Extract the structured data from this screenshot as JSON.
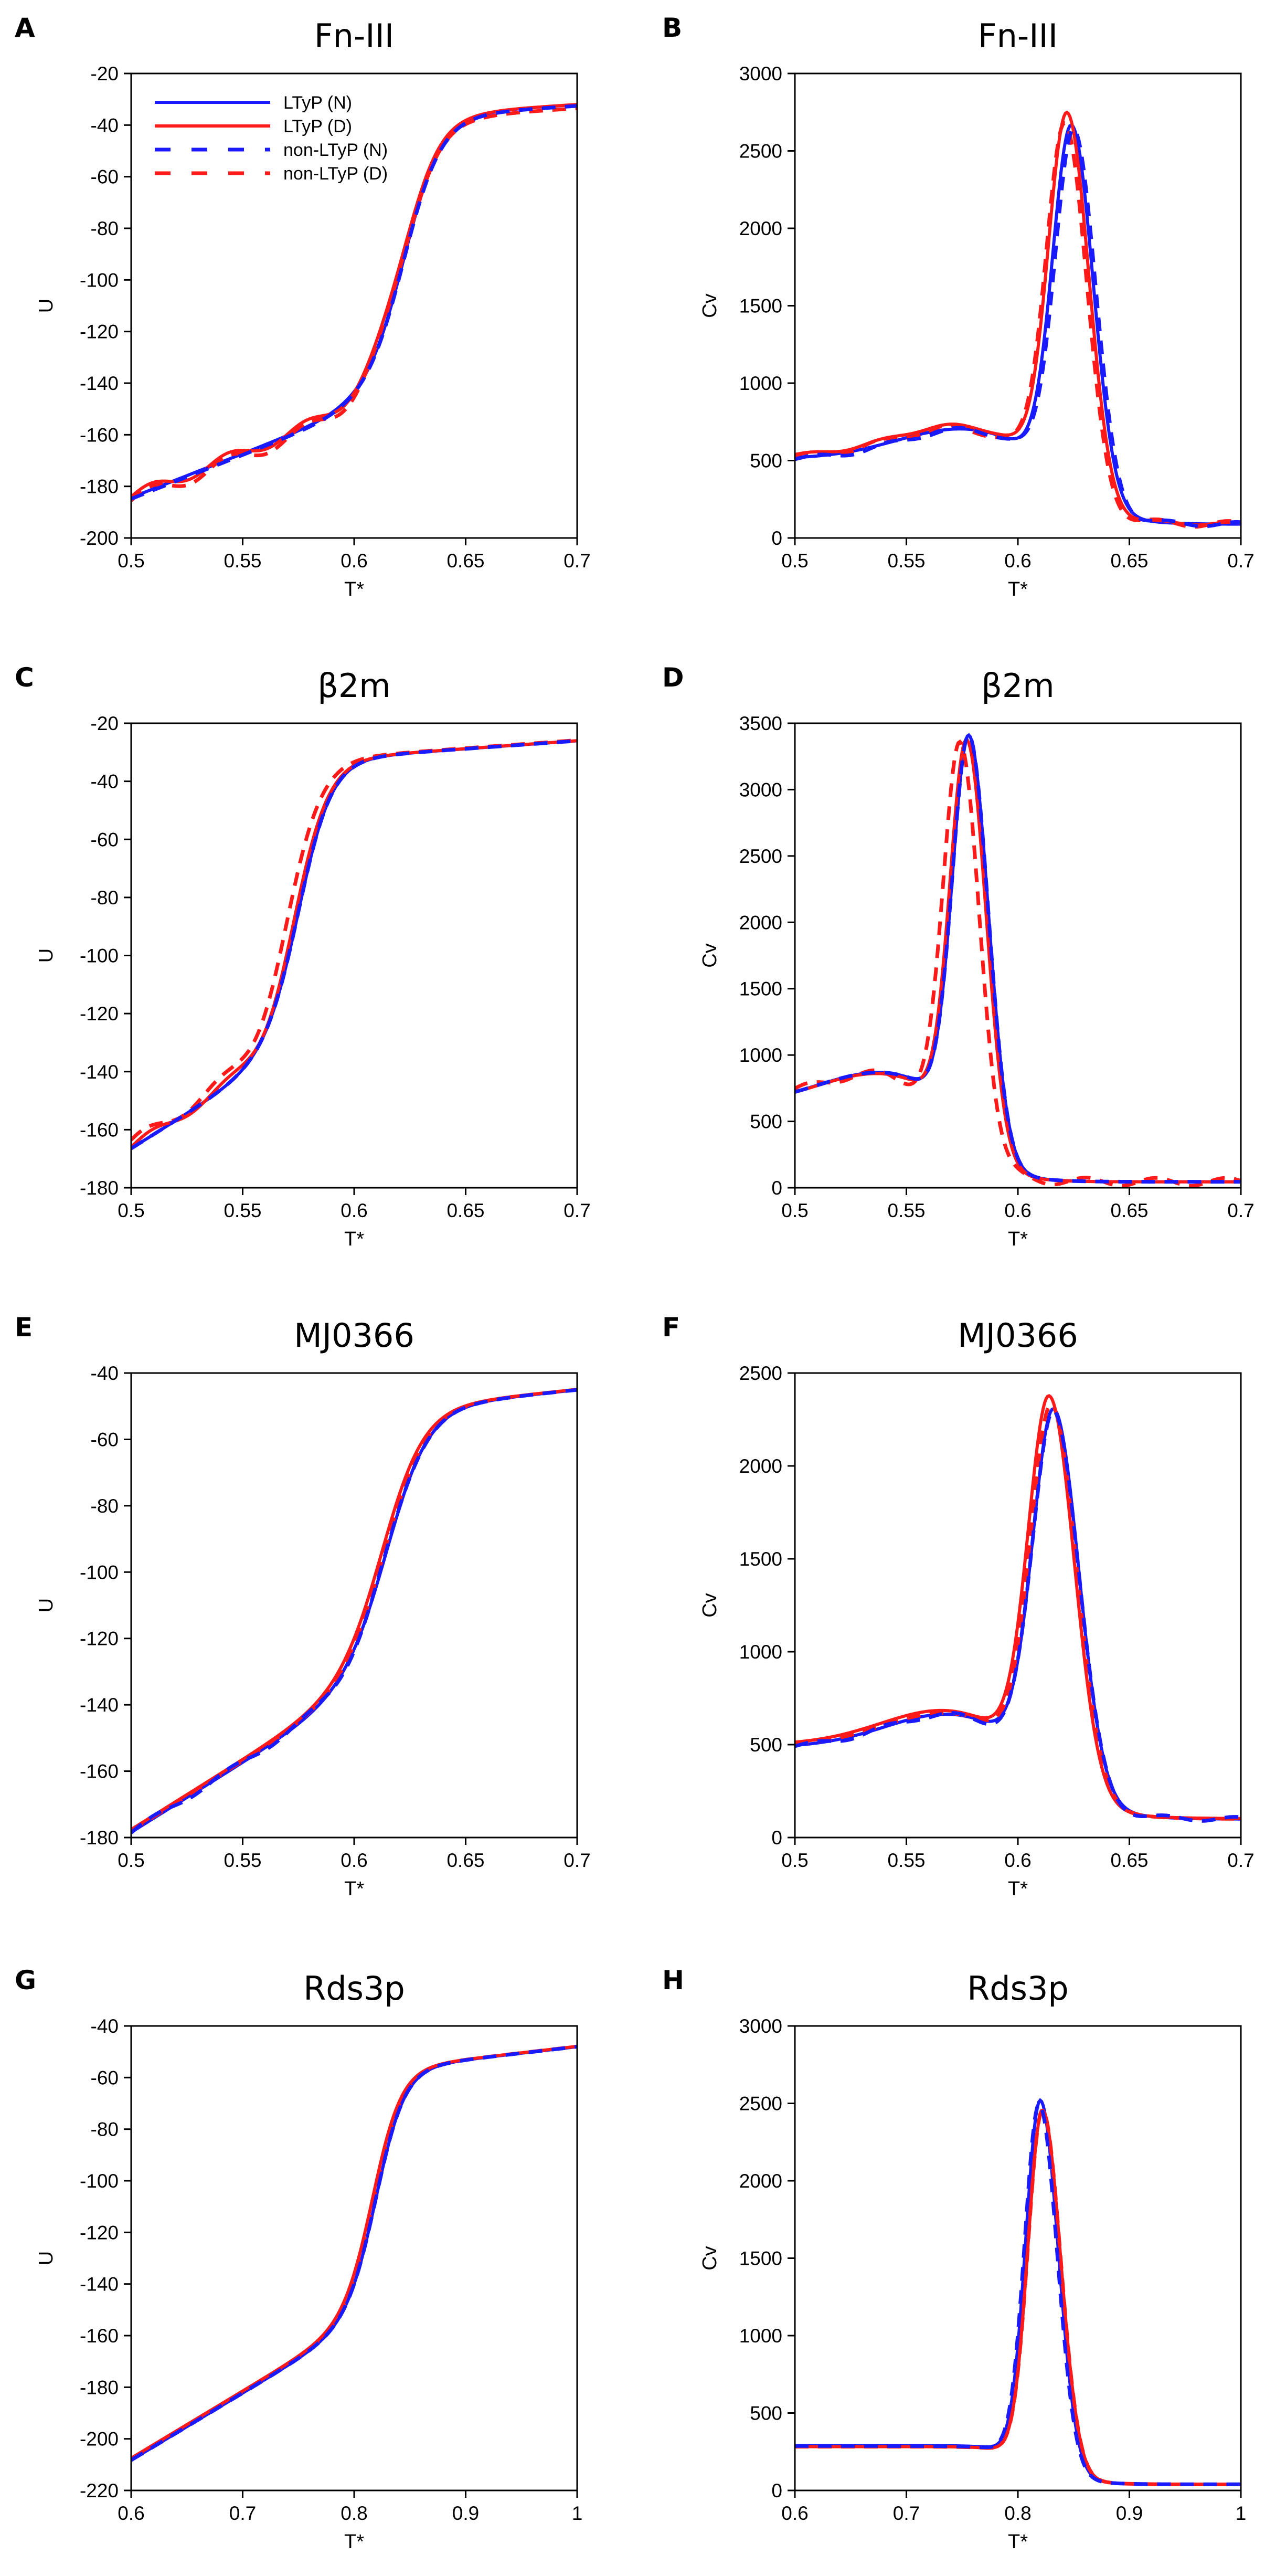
{
  "figure": {
    "colors": {
      "ltyp_n": "#1a1aff",
      "ltyp_d": "#ff1a1a",
      "nonltyp_n": "#1a1aff",
      "nonltyp_d": "#ff1a1a",
      "axis": "#000000"
    },
    "legend": [
      {
        "key": "ltyp_n",
        "label": "LTyP (N)",
        "style": "solid"
      },
      {
        "key": "ltyp_d",
        "label": "LTyP (D)",
        "style": "solid"
      },
      {
        "key": "nonltyp_n",
        "label": "non-LTyP (N)",
        "style": "dashed"
      },
      {
        "key": "nonltyp_d",
        "label": "non-LTyP (D)",
        "style": "dashed"
      }
    ]
  },
  "chart_data": [
    {
      "panel": "A",
      "title": "Fn-III",
      "type": "line",
      "xlabel": "T*",
      "ylabel": "U",
      "xlim": [
        0.5,
        0.7
      ],
      "ylim": [
        -200,
        -20
      ],
      "xticks": [
        "0.5",
        "0.55",
        "0.6",
        "0.65",
        "0.7"
      ],
      "yticks": [
        "-20",
        "-40",
        "-60",
        "-80",
        "-100",
        "-120",
        "-140",
        "-160",
        "-180",
        "-200"
      ],
      "legend": "top-left",
      "curve": "sigmoid",
      "params": {
        "tm": 0.622,
        "low": -184,
        "high": -32,
        "w": 0.0085,
        "amp": 72,
        "slopeLow": 340,
        "slopeHigh": 55
      },
      "series": [
        {
          "name": "LTyP (N)",
          "key": "ltyp_n",
          "style": "solid",
          "dx": 0.001,
          "dy": 0,
          "wob": 0
        },
        {
          "name": "LTyP (D)",
          "key": "ltyp_d",
          "style": "solid",
          "dx": 0,
          "dy": 0,
          "wob": 2.2
        },
        {
          "name": "non-LTyP (N)",
          "key": "nonltyp_n",
          "style": "dashed",
          "dx": 0.001,
          "dy": -0.5,
          "wob": 0
        },
        {
          "name": "non-LTyP (D)",
          "key": "nonltyp_d",
          "style": "dashed",
          "dx": 0,
          "dy": -1.5,
          "wob": 2.6
        }
      ]
    },
    {
      "panel": "B",
      "title": "Fn-III",
      "type": "line",
      "xlabel": "T*",
      "ylabel": "Cv",
      "xlim": [
        0.5,
        0.7
      ],
      "ylim": [
        0,
        3000
      ],
      "xticks": [
        "0.5",
        "0.55",
        "0.6",
        "0.65",
        "0.7"
      ],
      "yticks": [
        "0",
        "500",
        "1000",
        "1500",
        "2000",
        "2500",
        "3000"
      ],
      "curve": "peak",
      "params": {
        "tm": 0.623,
        "peak": 2680,
        "wl": 0.0085,
        "wr": 0.0095,
        "base0": 520,
        "base1": 90,
        "shoulder": 200,
        "shoulderX": 0.575
      },
      "series": [
        {
          "name": "LTyP (N)",
          "key": "ltyp_n",
          "style": "solid",
          "dx": 0.001,
          "scale": 0.985,
          "wob": 0
        },
        {
          "name": "LTyP (D)",
          "key": "ltyp_d",
          "style": "solid",
          "dx": -0.001,
          "scale": 1.015,
          "wob": 10
        },
        {
          "name": "non-LTyP (N)",
          "key": "nonltyp_n",
          "style": "dashed",
          "dx": 0.002,
          "scale": 0.975,
          "wob": 15
        },
        {
          "name": "non-LTyP (D)",
          "key": "nonltyp_d",
          "style": "dashed",
          "dx": -0.002,
          "scale": 0.99,
          "wob": 20
        }
      ]
    },
    {
      "panel": "C",
      "title": "β2m",
      "type": "line",
      "xlabel": "T*",
      "ylabel": "U",
      "xlim": [
        0.5,
        0.7
      ],
      "ylim": [
        -180,
        -20
      ],
      "xticks": [
        "0.5",
        "0.55",
        "0.6",
        "0.65",
        "0.7"
      ],
      "yticks": [
        "-20",
        "-40",
        "-60",
        "-80",
        "-100",
        "-120",
        "-140",
        "-160",
        "-180"
      ],
      "curve": "sigmoid",
      "params": {
        "tm": 0.575,
        "low": -166,
        "high": -26,
        "w": 0.0075,
        "amp": 70,
        "slopeLow": 480,
        "slopeHigh": 55
      },
      "series": [
        {
          "name": "LTyP (N)",
          "key": "ltyp_n",
          "style": "solid",
          "dx": 0.001,
          "dy": 0,
          "wob": 0
        },
        {
          "name": "LTyP (D)",
          "key": "ltyp_d",
          "style": "solid",
          "dx": 0,
          "dy": 0,
          "wob": 1.5
        },
        {
          "name": "non-LTyP (N)",
          "key": "nonltyp_n",
          "style": "dashed",
          "dx": 0.001,
          "dy": 0,
          "wob": 0
        },
        {
          "name": "non-LTyP (D)",
          "key": "nonltyp_d",
          "style": "dashed",
          "dx": -0.003,
          "dy": 0,
          "wob": 2
        }
      ]
    },
    {
      "panel": "D",
      "title": "β2m",
      "type": "line",
      "xlabel": "T*",
      "ylabel": "Cv",
      "xlim": [
        0.5,
        0.7
      ],
      "ylim": [
        0,
        3500
      ],
      "xticks": [
        "0.5",
        "0.55",
        "0.6",
        "0.65",
        "0.7"
      ],
      "yticks": [
        "0",
        "500",
        "1000",
        "1500",
        "2000",
        "2500",
        "3000",
        "3500"
      ],
      "curve": "peak",
      "params": {
        "tm": 0.577,
        "peak": 3350,
        "wl": 0.0075,
        "wr": 0.0085,
        "base0": 620,
        "base1": 45,
        "shoulder": 260,
        "shoulderX": 0.54
      },
      "series": [
        {
          "name": "LTyP (N)",
          "key": "ltyp_n",
          "style": "solid",
          "dx": 0.001,
          "scale": 1.0,
          "wob": 0
        },
        {
          "name": "LTyP (D)",
          "key": "ltyp_d",
          "style": "solid",
          "dx": 0,
          "scale": 0.99,
          "wob": 0
        },
        {
          "name": "non-LTyP (N)",
          "key": "nonltyp_n",
          "style": "dashed",
          "dx": 0.001,
          "scale": 1.0,
          "wob": 0
        },
        {
          "name": "non-LTyP (D)",
          "key": "nonltyp_d",
          "style": "dashed",
          "dx": -0.003,
          "scale": 0.985,
          "wob": 30
        }
      ]
    },
    {
      "panel": "E",
      "title": "MJ0366",
      "type": "line",
      "xlabel": "T*",
      "ylabel": "U",
      "xlim": [
        0.5,
        0.7
      ],
      "ylim": [
        -180,
        -40
      ],
      "xticks": [
        "0.5",
        "0.55",
        "0.6",
        "0.65",
        "0.7"
      ],
      "yticks": [
        "-40",
        "-60",
        "-80",
        "-100",
        "-120",
        "-140",
        "-160",
        "-180"
      ],
      "curve": "sigmoid",
      "params": {
        "tm": 0.615,
        "low": -178,
        "high": -45,
        "w": 0.0095,
        "amp": 58,
        "slopeLow": 420,
        "slopeHigh": 70
      },
      "series": [
        {
          "name": "LTyP (N)",
          "key": "ltyp_n",
          "style": "solid",
          "dx": 0.001,
          "dy": 0,
          "wob": 0
        },
        {
          "name": "LTyP (D)",
          "key": "ltyp_d",
          "style": "solid",
          "dx": -0.001,
          "dy": 0,
          "wob": 0
        },
        {
          "name": "non-LTyP (N)",
          "key": "nonltyp_n",
          "style": "dashed",
          "dx": 0.001,
          "dy": 0,
          "wob": 0.8
        },
        {
          "name": "non-LTyP (D)",
          "key": "nonltyp_d",
          "style": "dashed",
          "dx": 0,
          "dy": 0,
          "wob": 0
        }
      ]
    },
    {
      "panel": "F",
      "title": "MJ0366",
      "type": "line",
      "xlabel": "T*",
      "ylabel": "Cv",
      "xlim": [
        0.5,
        0.7
      ],
      "ylim": [
        0,
        2500
      ],
      "xticks": [
        "0.5",
        "0.55",
        "0.6",
        "0.65",
        "0.7"
      ],
      "yticks": [
        "0",
        "500",
        "1000",
        "1500",
        "2000",
        "2500"
      ],
      "curve": "peak",
      "params": {
        "tm": 0.615,
        "peak": 2300,
        "wl": 0.0095,
        "wr": 0.011,
        "base0": 490,
        "base1": 100,
        "shoulder": 190,
        "shoulderX": 0.57
      },
      "series": [
        {
          "name": "LTyP (N)",
          "key": "ltyp_n",
          "style": "solid",
          "dx": 0.001,
          "scale": 0.99,
          "wob": 0
        },
        {
          "name": "LTyP (D)",
          "key": "ltyp_d",
          "style": "solid",
          "dx": -0.001,
          "scale": 1.02,
          "wob": 0
        },
        {
          "name": "non-LTyP (N)",
          "key": "nonltyp_n",
          "style": "dashed",
          "dx": 0.001,
          "scale": 0.985,
          "wob": 12
        },
        {
          "name": "non-LTyP (D)",
          "key": "nonltyp_d",
          "style": "dashed",
          "dx": 0,
          "scale": 1.0,
          "wob": 0
        }
      ]
    },
    {
      "panel": "G",
      "title": "Rds3p",
      "type": "line",
      "xlabel": "T*",
      "ylabel": "U",
      "xlim": [
        0.6,
        1.0
      ],
      "ylim": [
        -220,
        -40
      ],
      "xticks": [
        "0.6",
        "0.7",
        "0.8",
        "0.9",
        "1"
      ],
      "yticks": [
        "-40",
        "-60",
        "-80",
        "-100",
        "-120",
        "-140",
        "-160",
        "-180",
        "-200",
        "-220"
      ],
      "curve": "sigmoid",
      "params": {
        "tm": 0.82,
        "low": -208,
        "high": -48,
        "w": 0.013,
        "amp": 95,
        "slopeLow": 260,
        "slopeHigh": 50
      },
      "series": [
        {
          "name": "LTyP (N)",
          "key": "ltyp_n",
          "style": "solid",
          "dx": 0.001,
          "dy": 0,
          "wob": 0
        },
        {
          "name": "LTyP (D)",
          "key": "ltyp_d",
          "style": "solid",
          "dx": -0.002,
          "dy": 0,
          "wob": 0
        },
        {
          "name": "non-LTyP (N)",
          "key": "nonltyp_n",
          "style": "dashed",
          "dx": 0.001,
          "dy": 0,
          "wob": 0
        },
        {
          "name": "non-LTyP (D)",
          "key": "nonltyp_d",
          "style": "dashed",
          "dx": -0.001,
          "dy": 0,
          "wob": 0
        }
      ]
    },
    {
      "panel": "H",
      "title": "Rds3p",
      "type": "line",
      "xlabel": "T*",
      "ylabel": "Cv",
      "xlim": [
        0.6,
        1.0
      ],
      "ylim": [
        0,
        3000
      ],
      "xticks": [
        "0.6",
        "0.7",
        "0.8",
        "0.9",
        "1"
      ],
      "yticks": [
        "0",
        "500",
        "1000",
        "1500",
        "2000",
        "2500",
        "3000"
      ],
      "curve": "peak",
      "params": {
        "tm": 0.82,
        "peak": 2520,
        "wl": 0.013,
        "wr": 0.016,
        "base0": 290,
        "base1": 40,
        "shoulder": 0,
        "shoulderX": 0.76
      },
      "series": [
        {
          "name": "LTyP (N)",
          "key": "ltyp_n",
          "style": "solid",
          "dx": 0,
          "scale": 1.0,
          "wob": 0
        },
        {
          "name": "LTyP (D)",
          "key": "ltyp_d",
          "style": "solid",
          "dx": 0.002,
          "scale": 0.975,
          "wob": 0
        },
        {
          "name": "non-LTyP (N)",
          "key": "nonltyp_n",
          "style": "dashed",
          "dx": -0.001,
          "scale": 0.99,
          "wob": 0
        },
        {
          "name": "non-LTyP (D)",
          "key": "nonltyp_d",
          "style": "dashed",
          "dx": 0.002,
          "scale": 0.975,
          "wob": 0
        }
      ]
    }
  ]
}
